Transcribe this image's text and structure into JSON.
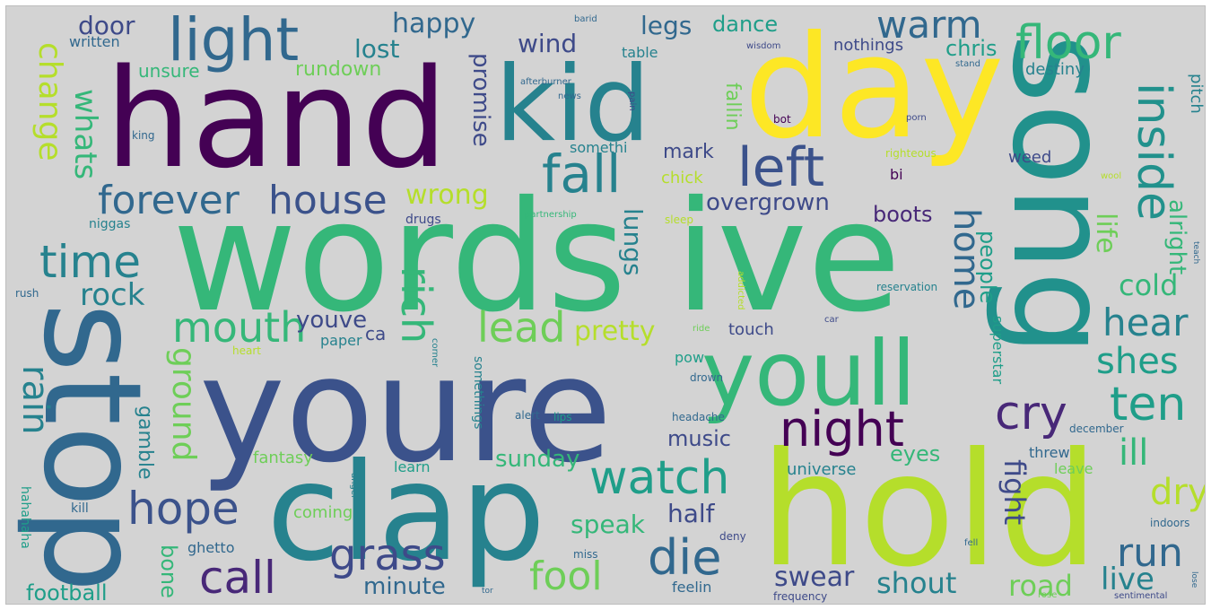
{
  "palette": {
    "background": "#d3d3d3",
    "purple": "#440154",
    "indigo": "#3b2a6e",
    "blue": "#3e4a89",
    "steel": "#31688e",
    "teal": "#26828e",
    "green": "#1f9e89",
    "mint": "#35b779",
    "lime": "#6ece58",
    "yellowgreen": "#b5de2b",
    "yellow": "#fde725"
  },
  "words": [
    {
      "text": "hand",
      "color": "#440154"
    },
    {
      "text": "kid",
      "color": "#26828e"
    },
    {
      "text": "day",
      "color": "#fde725"
    },
    {
      "text": "song",
      "color": "#21918c"
    },
    {
      "text": "words",
      "color": "#35b779"
    },
    {
      "text": "ive",
      "color": "#35b779"
    },
    {
      "text": "youre",
      "color": "#3b528b"
    },
    {
      "text": "stop",
      "color": "#31688e"
    },
    {
      "text": "clap",
      "color": "#26828e"
    },
    {
      "text": "hold",
      "color": "#b5de2b"
    },
    {
      "text": "youll",
      "color": "#35b779"
    },
    {
      "text": "light",
      "color": "#31688e"
    },
    {
      "text": "left",
      "color": "#3b528b"
    },
    {
      "text": "fall",
      "color": "#26828e"
    },
    {
      "text": "floor",
      "color": "#35b779"
    },
    {
      "text": "warm",
      "color": "#31688e"
    },
    {
      "text": "inside",
      "color": "#21918c"
    },
    {
      "text": "house",
      "color": "#3b528b"
    },
    {
      "text": "forever",
      "color": "#31688e"
    },
    {
      "text": "time",
      "color": "#26828e"
    },
    {
      "text": "mouth",
      "color": "#35b779"
    },
    {
      "text": "rich",
      "color": "#35b779"
    },
    {
      "text": "lead",
      "color": "#6ece58"
    },
    {
      "text": "night",
      "color": "#440154"
    },
    {
      "text": "cry",
      "color": "#482878"
    },
    {
      "text": "ten",
      "color": "#1f9e89"
    },
    {
      "text": "watch",
      "color": "#1f9e89"
    },
    {
      "text": "hope",
      "color": "#3b528b"
    },
    {
      "text": "call",
      "color": "#482878"
    },
    {
      "text": "grass",
      "color": "#3e4a89"
    },
    {
      "text": "die",
      "color": "#31688e"
    },
    {
      "text": "fool",
      "color": "#6ece58"
    },
    {
      "text": "run",
      "color": "#31688e"
    },
    {
      "text": "hear",
      "color": "#26828e"
    },
    {
      "text": "shes",
      "color": "#1f9e89"
    },
    {
      "text": "home",
      "color": "#31688e"
    },
    {
      "text": "rain",
      "color": "#26828e"
    },
    {
      "text": "rock",
      "color": "#26828e"
    },
    {
      "text": "ground",
      "color": "#6ece58"
    },
    {
      "text": "change",
      "color": "#b5de2b"
    },
    {
      "text": "whats",
      "color": "#35b779"
    },
    {
      "text": "happy",
      "color": "#31688e"
    },
    {
      "text": "door",
      "color": "#3e4a89"
    },
    {
      "text": "lost",
      "color": "#26828e"
    },
    {
      "text": "wind",
      "color": "#3e4a89"
    },
    {
      "text": "legs",
      "color": "#31688e"
    },
    {
      "text": "dance",
      "color": "#1f9e89"
    },
    {
      "text": "chris",
      "color": "#1f9e89"
    },
    {
      "text": "promise",
      "color": "#3e4a89"
    },
    {
      "text": "wrong",
      "color": "#b5de2b"
    },
    {
      "text": "pretty",
      "color": "#b5de2b"
    },
    {
      "text": "youve",
      "color": "#3e4a89"
    },
    {
      "text": "lungs",
      "color": "#26828e"
    },
    {
      "text": "overgrown",
      "color": "#3e4a89"
    },
    {
      "text": "boots",
      "color": "#482878"
    },
    {
      "text": "life",
      "color": "#6ece58"
    },
    {
      "text": "alright",
      "color": "#35b779"
    },
    {
      "text": "people",
      "color": "#1f9e89"
    },
    {
      "text": "cold",
      "color": "#35b779"
    },
    {
      "text": "fight",
      "color": "#3e4a89"
    },
    {
      "text": "ill",
      "color": "#35b779"
    },
    {
      "text": "dry",
      "color": "#b5de2b"
    },
    {
      "text": "eyes",
      "color": "#35b779"
    },
    {
      "text": "music",
      "color": "#3e4a89"
    },
    {
      "text": "sunday",
      "color": "#35b779"
    },
    {
      "text": "speak",
      "color": "#35b779"
    },
    {
      "text": "half",
      "color": "#3e4a89"
    },
    {
      "text": "swear",
      "color": "#3e4a89"
    },
    {
      "text": "shout",
      "color": "#26828e"
    },
    {
      "text": "road",
      "color": "#6ece58"
    },
    {
      "text": "live",
      "color": "#26828e"
    },
    {
      "text": "minute",
      "color": "#31688e"
    },
    {
      "text": "football",
      "color": "#1f9e89"
    },
    {
      "text": "bone",
      "color": "#35b779"
    },
    {
      "text": "gamble",
      "color": "#26828e"
    },
    {
      "text": "mark",
      "color": "#3e4a89"
    },
    {
      "text": "fallin",
      "color": "#6ece58"
    },
    {
      "text": "unsure",
      "color": "#35b779"
    },
    {
      "text": "rundown",
      "color": "#6ece58"
    },
    {
      "text": "written",
      "color": "#31688e"
    },
    {
      "text": "table",
      "color": "#26828e"
    },
    {
      "text": "nothings",
      "color": "#3e4a89"
    },
    {
      "text": "destiny",
      "color": "#26828e"
    },
    {
      "text": "pitch",
      "color": "#26828e"
    },
    {
      "text": "weed",
      "color": "#3e4a89"
    },
    {
      "text": "somethi",
      "color": "#26828e"
    },
    {
      "text": "chick",
      "color": "#b5de2b"
    },
    {
      "text": "drugs",
      "color": "#3e4a89"
    },
    {
      "text": "niggas",
      "color": "#26828e"
    },
    {
      "text": "touch",
      "color": "#3e4a89"
    },
    {
      "text": "paper",
      "color": "#26828e"
    },
    {
      "text": "ca",
      "color": "#3e4a89"
    },
    {
      "text": "superstar",
      "color": "#1f9e89"
    },
    {
      "text": "universe",
      "color": "#26828e"
    },
    {
      "text": "threw",
      "color": "#31688e"
    },
    {
      "text": "leave",
      "color": "#6ece58"
    },
    {
      "text": "fantasy",
      "color": "#6ece58"
    },
    {
      "text": "learn",
      "color": "#1f9e89"
    },
    {
      "text": "coming",
      "color": "#6ece58"
    },
    {
      "text": "ghetto",
      "color": "#31688e"
    },
    {
      "text": "hahahaha",
      "color": "#1f9e89"
    },
    {
      "text": "kill",
      "color": "#31688e"
    },
    {
      "text": "somethings",
      "color": "#26828e"
    },
    {
      "text": "pow",
      "color": "#1f9e89"
    },
    {
      "text": "feelin",
      "color": "#31688e"
    },
    {
      "text": "frequency",
      "color": "#3e4a89"
    },
    {
      "text": "indoors",
      "color": "#31688e"
    },
    {
      "text": "december",
      "color": "#31688e"
    },
    {
      "text": "headache",
      "color": "#31688e"
    },
    {
      "text": "reservation",
      "color": "#26828e"
    },
    {
      "text": "bi",
      "color": "#440154"
    },
    {
      "text": "bot",
      "color": "#440154"
    },
    {
      "text": "king",
      "color": "#31688e"
    },
    {
      "text": "rush",
      "color": "#31688e"
    },
    {
      "text": "heart",
      "color": "#b5de2b"
    },
    {
      "text": "drown",
      "color": "#31688e"
    },
    {
      "text": "alert",
      "color": "#31688e"
    },
    {
      "text": "lips",
      "color": "#1f9e89"
    },
    {
      "text": "miss",
      "color": "#31688e"
    },
    {
      "text": "deny",
      "color": "#3e4a89"
    },
    {
      "text": "angel",
      "color": "#26828e"
    },
    {
      "text": "corner",
      "color": "#26828e"
    },
    {
      "text": "partnership",
      "color": "#35b779"
    },
    {
      "text": "sleep",
      "color": "#b5de2b"
    },
    {
      "text": "afterburner",
      "color": "#31688e"
    },
    {
      "text": "righteous",
      "color": "#b5de2b"
    },
    {
      "text": "news",
      "color": "#31688e"
    },
    {
      "text": "pain",
      "color": "#3e4a89"
    },
    {
      "text": "addicted",
      "color": "#b5de2b"
    },
    {
      "text": "wisdom",
      "color": "#3e4a89"
    },
    {
      "text": "stand",
      "color": "#31688e"
    },
    {
      "text": "barid",
      "color": "#31688e"
    },
    {
      "text": "porn",
      "color": "#3e4a89"
    },
    {
      "text": "wool",
      "color": "#b5de2b"
    },
    {
      "text": "teach",
      "color": "#31688e"
    },
    {
      "text": "car",
      "color": "#3e4a89"
    },
    {
      "text": "ride",
      "color": "#6ece58"
    },
    {
      "text": "sentimental",
      "color": "#3e4a89"
    },
    {
      "text": "lose",
      "color": "#31688e"
    },
    {
      "text": "rose",
      "color": "#6ece58"
    },
    {
      "text": "tor",
      "color": "#31688e"
    },
    {
      "text": "fell",
      "color": "#31688e"
    }
  ]
}
